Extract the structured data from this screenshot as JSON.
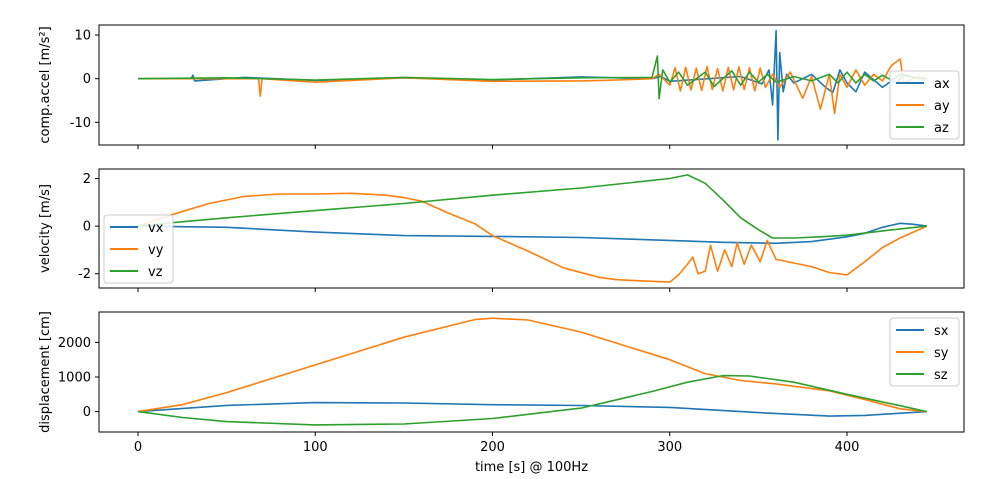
{
  "colors": {
    "c0": "#1f77b4",
    "c1": "#ff7f0e",
    "c2": "#2ca02c"
  },
  "chart_data": [
    {
      "type": "line",
      "ylabel": "comp.accel [m/s²]",
      "xlabel": "",
      "xlim": [
        -22,
        466
      ],
      "ylim": [
        -15.2,
        12.3
      ],
      "yticks": [
        -10,
        0,
        10
      ],
      "xticks": [
        0,
        100,
        200,
        300,
        400
      ],
      "legend": "right",
      "series": [
        {
          "name": "ax",
          "values": [
            [
              0,
              0
            ],
            [
              30,
              0
            ],
            [
              31,
              0.8
            ],
            [
              32,
              -0.5
            ],
            [
              60,
              0.3
            ],
            [
              100,
              -0.4
            ],
            [
              150,
              0.2
            ],
            [
              200,
              -0.3
            ],
            [
              250,
              0.4
            ],
            [
              290,
              0
            ],
            [
              295,
              0.5
            ],
            [
              300,
              -0.6
            ],
            [
              340,
              0.5
            ],
            [
              352,
              -1.2
            ],
            [
              356,
              2
            ],
            [
              358,
              -6
            ],
            [
              360,
              11
            ],
            [
              361,
              -14
            ],
            [
              362,
              6
            ],
            [
              364,
              -3
            ],
            [
              366,
              1
            ],
            [
              370,
              -1
            ],
            [
              380,
              1
            ],
            [
              388,
              -2
            ],
            [
              392,
              -3.2
            ],
            [
              396,
              2
            ],
            [
              400,
              -1
            ],
            [
              405,
              -3
            ],
            [
              410,
              1.5
            ],
            [
              420,
              -2
            ],
            [
              430,
              1
            ],
            [
              440,
              0
            ],
            [
              445,
              0
            ]
          ]
        },
        {
          "name": "ay",
          "values": [
            [
              0,
              0
            ],
            [
              68,
              0
            ],
            [
              69,
              -4
            ],
            [
              70,
              0
            ],
            [
              100,
              -0.8
            ],
            [
              150,
              0.2
            ],
            [
              200,
              -0.6
            ],
            [
              250,
              -0.5
            ],
            [
              270,
              -0.3
            ],
            [
              290,
              0
            ],
            [
              294,
              1
            ],
            [
              300,
              -1.5
            ],
            [
              303,
              2.5
            ],
            [
              306,
              -2.8
            ],
            [
              309,
              2.6
            ],
            [
              312,
              -2.6
            ],
            [
              315,
              2.4
            ],
            [
              318,
              -2.7
            ],
            [
              321,
              2.8
            ],
            [
              324,
              -2.5
            ],
            [
              327,
              2.3
            ],
            [
              330,
              -2.8
            ],
            [
              333,
              2.6
            ],
            [
              336,
              -2.6
            ],
            [
              339,
              2.7
            ],
            [
              342,
              -2.5
            ],
            [
              345,
              2.5
            ],
            [
              348,
              -2.8
            ],
            [
              351,
              2.4
            ],
            [
              354,
              -2
            ],
            [
              358,
              1
            ],
            [
              362,
              -2
            ],
            [
              368,
              1.5
            ],
            [
              375,
              -4.5
            ],
            [
              380,
              0.5
            ],
            [
              385,
              -7
            ],
            [
              390,
              1
            ],
            [
              393,
              -8
            ],
            [
              396,
              1
            ],
            [
              400,
              -2
            ],
            [
              405,
              2
            ],
            [
              410,
              -1.5
            ],
            [
              415,
              1
            ],
            [
              420,
              -0.5
            ],
            [
              425,
              3
            ],
            [
              430,
              4.5
            ],
            [
              432,
              -1
            ],
            [
              440,
              0.5
            ],
            [
              445,
              0
            ]
          ]
        },
        {
          "name": "az",
          "values": [
            [
              0,
              0
            ],
            [
              50,
              0.2
            ],
            [
              100,
              -0.3
            ],
            [
              150,
              0.3
            ],
            [
              200,
              -0.2
            ],
            [
              250,
              0.2
            ],
            [
              290,
              0.3
            ],
            [
              293,
              5.2
            ],
            [
              294,
              -4.6
            ],
            [
              296,
              2
            ],
            [
              300,
              -0.8
            ],
            [
              305,
              1.5
            ],
            [
              310,
              -1.5
            ],
            [
              320,
              1.5
            ],
            [
              325,
              -1.8
            ],
            [
              335,
              1.8
            ],
            [
              340,
              -1.5
            ],
            [
              345,
              1.5
            ],
            [
              350,
              -0.8
            ],
            [
              355,
              1
            ],
            [
              360,
              -0.8
            ],
            [
              370,
              0.5
            ],
            [
              380,
              -0.5
            ],
            [
              390,
              1
            ],
            [
              395,
              -1
            ],
            [
              400,
              1.5
            ],
            [
              405,
              -1
            ],
            [
              410,
              1
            ],
            [
              415,
              -0.5
            ],
            [
              420,
              0.8
            ],
            [
              428,
              -1
            ],
            [
              432,
              1
            ],
            [
              440,
              0
            ],
            [
              445,
              0
            ]
          ]
        }
      ]
    },
    {
      "type": "line",
      "ylabel": "velocity [m/s]",
      "xlabel": "",
      "xlim": [
        -22,
        466
      ],
      "ylim": [
        -2.6,
        2.4
      ],
      "yticks": [
        -2,
        0,
        2
      ],
      "xticks": [
        0,
        100,
        200,
        300,
        400
      ],
      "legend": "left",
      "series": [
        {
          "name": "vx",
          "values": [
            [
              0,
              0
            ],
            [
              50,
              -0.05
            ],
            [
              100,
              -0.25
            ],
            [
              150,
              -0.4
            ],
            [
              200,
              -0.43
            ],
            [
              250,
              -0.48
            ],
            [
              300,
              -0.6
            ],
            [
              330,
              -0.68
            ],
            [
              360,
              -0.72
            ],
            [
              380,
              -0.65
            ],
            [
              400,
              -0.45
            ],
            [
              410,
              -0.3
            ],
            [
              420,
              -0.05
            ],
            [
              430,
              0.12
            ],
            [
              437,
              0.08
            ],
            [
              445,
              0
            ]
          ]
        },
        {
          "name": "vy",
          "values": [
            [
              0,
              0
            ],
            [
              20,
              0.5
            ],
            [
              40,
              0.95
            ],
            [
              60,
              1.25
            ],
            [
              80,
              1.35
            ],
            [
              100,
              1.35
            ],
            [
              120,
              1.38
            ],
            [
              140,
              1.3
            ],
            [
              150,
              1.2
            ],
            [
              160,
              1.05
            ],
            [
              175,
              0.55
            ],
            [
              190,
              0.1
            ],
            [
              200,
              -0.4
            ],
            [
              220,
              -1.05
            ],
            [
              240,
              -1.75
            ],
            [
              260,
              -2.15
            ],
            [
              270,
              -2.25
            ],
            [
              300,
              -2.35
            ],
            [
              305,
              -2.05
            ],
            [
              310,
              -1.6
            ],
            [
              313,
              -1.3
            ],
            [
              316,
              -2
            ],
            [
              320,
              -1.9
            ],
            [
              323,
              -0.8
            ],
            [
              327,
              -1.9
            ],
            [
              331,
              -1
            ],
            [
              335,
              -1.7
            ],
            [
              338,
              -0.7
            ],
            [
              342,
              -1.6
            ],
            [
              346,
              -0.8
            ],
            [
              351,
              -1.5
            ],
            [
              355,
              -0.6
            ],
            [
              360,
              -1.4
            ],
            [
              370,
              -1.55
            ],
            [
              380,
              -1.7
            ],
            [
              390,
              -1.95
            ],
            [
              400,
              -2.05
            ],
            [
              410,
              -1.5
            ],
            [
              420,
              -0.9
            ],
            [
              430,
              -0.5
            ],
            [
              445,
              0
            ]
          ]
        },
        {
          "name": "vz",
          "values": [
            [
              0,
              0
            ],
            [
              20,
              0.15
            ],
            [
              50,
              0.35
            ],
            [
              100,
              0.65
            ],
            [
              150,
              0.95
            ],
            [
              200,
              1.3
            ],
            [
              250,
              1.6
            ],
            [
              300,
              2
            ],
            [
              310,
              2.15
            ],
            [
              320,
              1.8
            ],
            [
              330,
              1.1
            ],
            [
              340,
              0.35
            ],
            [
              350,
              -0.15
            ],
            [
              358,
              -0.5
            ],
            [
              370,
              -0.5
            ],
            [
              385,
              -0.45
            ],
            [
              400,
              -0.38
            ],
            [
              420,
              -0.2
            ],
            [
              445,
              0
            ]
          ]
        }
      ]
    },
    {
      "type": "line",
      "ylabel": "displacement [cm]",
      "xlabel": "time [s] @ 100Hz",
      "xlim": [
        -22,
        466
      ],
      "ylim": [
        -590,
        2880
      ],
      "yticks": [
        0,
        1000,
        2000
      ],
      "xticks": [
        0,
        100,
        200,
        300,
        400
      ],
      "legend": "right",
      "series": [
        {
          "name": "sx",
          "values": [
            [
              0,
              0
            ],
            [
              50,
              180
            ],
            [
              100,
              260
            ],
            [
              150,
              250
            ],
            [
              200,
              200
            ],
            [
              250,
              175
            ],
            [
              300,
              120
            ],
            [
              350,
              -30
            ],
            [
              390,
              -130
            ],
            [
              410,
              -110
            ],
            [
              445,
              0
            ]
          ]
        },
        {
          "name": "sy",
          "values": [
            [
              0,
              0
            ],
            [
              25,
              200
            ],
            [
              50,
              550
            ],
            [
              100,
              1350
            ],
            [
              150,
              2150
            ],
            [
              190,
              2660
            ],
            [
              200,
              2700
            ],
            [
              220,
              2650
            ],
            [
              250,
              2300
            ],
            [
              300,
              1500
            ],
            [
              320,
              1100
            ],
            [
              340,
              900
            ],
            [
              360,
              800
            ],
            [
              390,
              600
            ],
            [
              410,
              350
            ],
            [
              430,
              80
            ],
            [
              445,
              0
            ]
          ]
        },
        {
          "name": "sz",
          "values": [
            [
              0,
              0
            ],
            [
              25,
              -170
            ],
            [
              50,
              -290
            ],
            [
              100,
              -385
            ],
            [
              150,
              -360
            ],
            [
              200,
              -200
            ],
            [
              250,
              100
            ],
            [
              290,
              580
            ],
            [
              310,
              850
            ],
            [
              330,
              1040
            ],
            [
              345,
              1030
            ],
            [
              370,
              850
            ],
            [
              400,
              500
            ],
            [
              430,
              170
            ],
            [
              445,
              0
            ]
          ]
        }
      ]
    }
  ]
}
